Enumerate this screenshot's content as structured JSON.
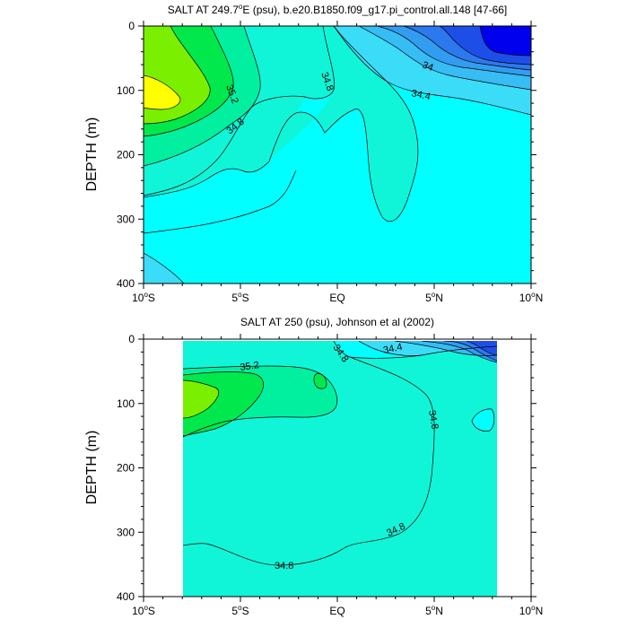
{
  "chart_data": [
    {
      "type": "contour",
      "title": "SALT AT 249.7°E (psu), b.e20.B1850.f09_g17.pi_control.all.148 [47-66]",
      "title_parts": {
        "pre": "SALT AT 249.7",
        "sup": "o",
        "post": "E (psu), b.e20.B1850.f09_g17.pi_control.all.148 [47-66]"
      },
      "ylabel": "DEPTH (m)",
      "xlim": [
        -10,
        10
      ],
      "ylim": [
        400,
        0
      ],
      "x_ticks": [
        {
          "value": -10,
          "num": "10",
          "deg": "o",
          "suffix": "S"
        },
        {
          "value": -5,
          "num": "5",
          "deg": "o",
          "suffix": "S"
        },
        {
          "value": 0,
          "num": "EQ",
          "deg": "",
          "suffix": ""
        },
        {
          "value": 5,
          "num": "5",
          "deg": "o",
          "suffix": "N"
        },
        {
          "value": 10,
          "num": "10",
          "deg": "o",
          "suffix": "N"
        }
      ],
      "y_ticks": [
        "0",
        "100",
        "200",
        "300",
        "400"
      ],
      "contour_levels": [
        33.4,
        33.6,
        33.8,
        34.0,
        34.2,
        34.4,
        34.6,
        34.8,
        35.0,
        35.2,
        35.4,
        35.6
      ],
      "contour_labels": [
        {
          "text": "35.2",
          "x": -4.6,
          "depth": 100
        },
        {
          "text": "34.8",
          "x": -4.3,
          "depth": 155
        },
        {
          "text": "34.8",
          "x": -0.5,
          "depth": 85
        },
        {
          "text": "34",
          "x": 5.3,
          "depth": 60
        },
        {
          "text": "34.4",
          "x": 4.6,
          "depth": 105
        }
      ],
      "features": {
        "max_salinity_core": {
          "x": -9.4,
          "depth": 105,
          "value": 35.6
        },
        "min_salinity_core": {
          "x": 9.2,
          "depth": 20,
          "value": 33.4
        }
      }
    },
    {
      "type": "contour",
      "title": "SALT AT 250 (psu), Johnson et al (2002)",
      "ylabel": "DEPTH (m)",
      "xlim": [
        -10,
        10
      ],
      "ylim": [
        400,
        0
      ],
      "data_extent_x": [
        -8.0,
        8.2
      ],
      "x_ticks": [
        {
          "value": -10,
          "num": "10",
          "deg": "o",
          "suffix": "S"
        },
        {
          "value": -5,
          "num": "5",
          "deg": "o",
          "suffix": "S"
        },
        {
          "value": 0,
          "num": "EQ",
          "deg": "",
          "suffix": ""
        },
        {
          "value": 5,
          "num": "5",
          "deg": "o",
          "suffix": "N"
        },
        {
          "value": 10,
          "num": "10",
          "deg": "o",
          "suffix": "N"
        }
      ],
      "y_ticks": [
        "0",
        "100",
        "200",
        "300",
        "400"
      ],
      "contour_levels": [
        33.6,
        33.8,
        34.0,
        34.2,
        34.4,
        34.6,
        34.8,
        35.0,
        35.2,
        35.4
      ],
      "contour_labels": [
        {
          "text": "35.2",
          "x": -5.0,
          "depth": 40
        },
        {
          "text": "34.8",
          "x": 0.2,
          "depth": 20
        },
        {
          "text": "34.4",
          "x": 2.8,
          "depth": 18
        },
        {
          "text": "34.8",
          "x": 4.9,
          "depth": 125
        },
        {
          "text": "34.8",
          "x": 3.1,
          "depth": 295
        },
        {
          "text": "34.8",
          "x": -2.8,
          "depth": 347
        }
      ],
      "features": {
        "max_salinity_core": {
          "x": -7.8,
          "depth": 85,
          "value": 35.4
        },
        "min_salinity_core": {
          "x": 7.8,
          "depth": 8,
          "value": 33.6
        }
      }
    }
  ],
  "colors": {
    "c33_4": "#0000ee",
    "c33_6": "#1d4fe8",
    "c33_8": "#2c78ee",
    "c34_0": "#329cf0",
    "c34_2": "#37bcf4",
    "c34_4": "#3bdcf8",
    "c34_6": "#00ffff",
    "c34_8": "#10f5d8",
    "c35_0": "#00f0a0",
    "c35_2": "#00e84c",
    "c35_4": "#7af000",
    "c35_6": "#ffff00"
  }
}
